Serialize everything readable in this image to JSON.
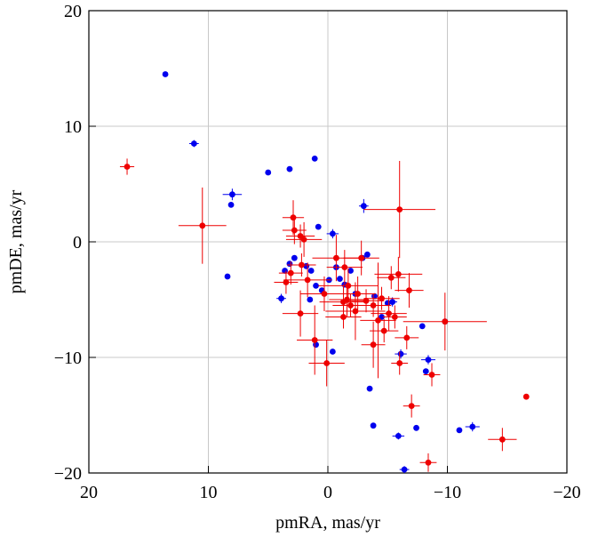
{
  "chart_data": {
    "type": "scatter",
    "xlabel": "pmRA, mas/yr",
    "ylabel": "pmDE, mas/yr",
    "xlim": [
      20,
      -20
    ],
    "ylim": [
      -20,
      20
    ],
    "xticks": [
      20,
      10,
      0,
      {
        "value": -10,
        "label": "−10"
      },
      {
        "value": -20,
        "label": "−20"
      }
    ],
    "yticks": [
      {
        "value": -20,
        "label": "−20"
      },
      {
        "value": -10,
        "label": "−10"
      },
      0,
      10,
      20
    ],
    "grid": true,
    "series": [
      {
        "color": "#0000ee",
        "x": [
          13.6,
          11.2,
          8.0,
          8.1,
          5.0,
          3.2,
          1.1,
          -3.0,
          0.8,
          -0.4,
          8.4,
          3.9,
          3.6,
          3.2,
          2.8,
          1.8,
          1.4,
          1.0,
          0.5,
          -0.1,
          -0.7,
          -1.0,
          -1.4,
          -1.9,
          -2.3,
          -2.9,
          -3.3,
          -3.9,
          -4.5,
          -5.0,
          -5.4,
          1.0,
          -0.4,
          -3.5,
          -3.8,
          -5.9,
          -6.1,
          -6.4,
          -7.4,
          -7.9,
          -8.4,
          -8.2,
          -9.8,
          -11.0,
          -12.1,
          1.5
        ],
        "y": [
          14.5,
          8.5,
          4.1,
          3.2,
          6.0,
          6.3,
          7.2,
          3.1,
          1.3,
          0.7,
          -3.0,
          -4.9,
          -2.5,
          -1.9,
          -1.4,
          -2.1,
          -2.5,
          -3.8,
          -4.2,
          -3.3,
          -2.2,
          -3.2,
          -3.7,
          -2.5,
          -4.5,
          -1.4,
          -1.1,
          -4.7,
          -6.5,
          -5.3,
          -5.2,
          -8.9,
          -9.5,
          -12.7,
          -15.9,
          -16.8,
          -9.7,
          -19.7,
          -16.1,
          -7.3,
          -10.2,
          -11.2,
          -6.9,
          -16.3,
          -16.0,
          -5.0
        ],
        "xerr": [
          null,
          0.4,
          0.8,
          null,
          null,
          null,
          null,
          0.4,
          null,
          0.5,
          null,
          0.4,
          null,
          null,
          null,
          null,
          null,
          null,
          null,
          null,
          null,
          null,
          null,
          null,
          null,
          null,
          null,
          null,
          null,
          null,
          0.4,
          null,
          null,
          null,
          null,
          0.5,
          0.5,
          0.4,
          null,
          null,
          0.6,
          null,
          null,
          null,
          0.6,
          null
        ],
        "yerr": [
          null,
          0.3,
          0.5,
          null,
          null,
          null,
          null,
          0.6,
          null,
          0.4,
          null,
          0.4,
          null,
          null,
          null,
          null,
          null,
          null,
          null,
          null,
          null,
          null,
          null,
          null,
          null,
          null,
          null,
          null,
          null,
          null,
          0.4,
          null,
          null,
          null,
          null,
          0.3,
          0.4,
          0.3,
          null,
          null,
          0.4,
          null,
          null,
          null,
          0.4,
          null
        ]
      },
      {
        "color": "#ee0000",
        "x": [
          16.8,
          10.5,
          2.9,
          2.8,
          2.3,
          3.1,
          3.5,
          2.2,
          1.7,
          2.3,
          0.1,
          1.1,
          0.3,
          -0.7,
          -1.4,
          -1.7,
          -1.3,
          -1.3,
          -1.9,
          -2.5,
          -2.3,
          -2.8,
          -3.2,
          -3.8,
          -4.5,
          -4.2,
          -3.8,
          -4.7,
          -5.1,
          -5.6,
          -5.3,
          -6.0,
          -5.9,
          -6.0,
          -6.6,
          -6.8,
          -7.0,
          -8.7,
          -8.4,
          -9.8,
          -14.6,
          -16.6,
          2.0,
          -1.6
        ],
        "y": [
          6.5,
          1.4,
          2.1,
          1.0,
          0.5,
          -2.7,
          -3.5,
          -2.0,
          -3.3,
          -6.2,
          -10.5,
          -8.5,
          -4.5,
          -1.4,
          -2.2,
          -3.8,
          -5.2,
          -6.5,
          -5.5,
          -4.5,
          -6.0,
          -1.4,
          -5.1,
          -5.5,
          -4.9,
          -6.8,
          -8.9,
          -7.7,
          -6.2,
          -6.5,
          -3.1,
          2.8,
          -2.8,
          -10.5,
          -8.3,
          -4.2,
          -14.2,
          -11.5,
          -19.1,
          -6.9,
          -17.1,
          -13.4,
          0.2,
          -5.0
        ],
        "xerr": [
          0.6,
          2.0,
          0.9,
          1.0,
          1.2,
          1.0,
          1.0,
          1.2,
          2.0,
          1.5,
          1.5,
          1.5,
          2.0,
          2.0,
          1.5,
          2.5,
          2.0,
          1.5,
          1.5,
          1.5,
          2.5,
          1.5,
          1.5,
          1.5,
          1.5,
          1.5,
          1.0,
          1.2,
          1.5,
          1.0,
          1.2,
          3.0,
          2.0,
          0.7,
          1.0,
          1.2,
          0.7,
          0.7,
          0.7,
          3.5,
          1.2,
          0.2,
          1.5,
          1.5
        ],
        "yerr": [
          0.7,
          3.3,
          1.5,
          1.2,
          1.0,
          1.0,
          1.0,
          1.0,
          1.5,
          2.0,
          2.0,
          3.0,
          1.5,
          2.0,
          1.5,
          1.5,
          1.5,
          1.0,
          1.0,
          1.5,
          2.5,
          1.5,
          1.0,
          1.0,
          1.0,
          5.0,
          2.0,
          1.0,
          1.5,
          1.0,
          1.0,
          4.2,
          1.5,
          1.0,
          1.0,
          1.5,
          1.0,
          1.0,
          0.8,
          2.5,
          1.0,
          0.2,
          1.5,
          1.5
        ]
      }
    ]
  }
}
